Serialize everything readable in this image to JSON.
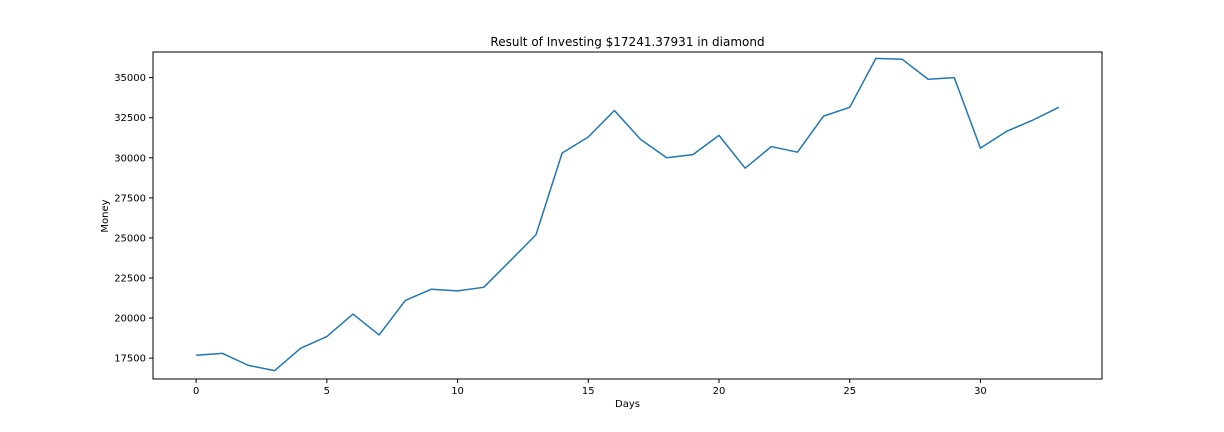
{
  "chart_data": {
    "type": "line",
    "title": "Result of Investing $17241.37931 in diamond",
    "xlabel": "Days",
    "ylabel": "Money",
    "xlim": [
      -1.65,
      34.65
    ],
    "ylim": [
      16200,
      36600
    ],
    "xticks": [
      0,
      5,
      10,
      15,
      20,
      25,
      30
    ],
    "yticks": [
      17500,
      20000,
      22500,
      25000,
      27500,
      30000,
      32500,
      35000
    ],
    "grid": false,
    "series": [
      {
        "color": "#1f77b4",
        "x": [
          0,
          1,
          2,
          3,
          4,
          5,
          6,
          7,
          8,
          9,
          10,
          11,
          12,
          13,
          14,
          15,
          16,
          17,
          18,
          19,
          20,
          21,
          22,
          23,
          24,
          25,
          26,
          27,
          28,
          29,
          30,
          31,
          32,
          33
        ],
        "y": [
          17680,
          17800,
          17050,
          16720,
          18120,
          18850,
          20250,
          18950,
          21100,
          21800,
          21700,
          21920,
          23550,
          25200,
          30300,
          31300,
          32950,
          31150,
          30000,
          30200,
          31400,
          29350,
          30700,
          30350,
          32600,
          33150,
          36200,
          36150,
          34900,
          35000,
          30600,
          31650,
          32350,
          33150
        ]
      }
    ]
  }
}
